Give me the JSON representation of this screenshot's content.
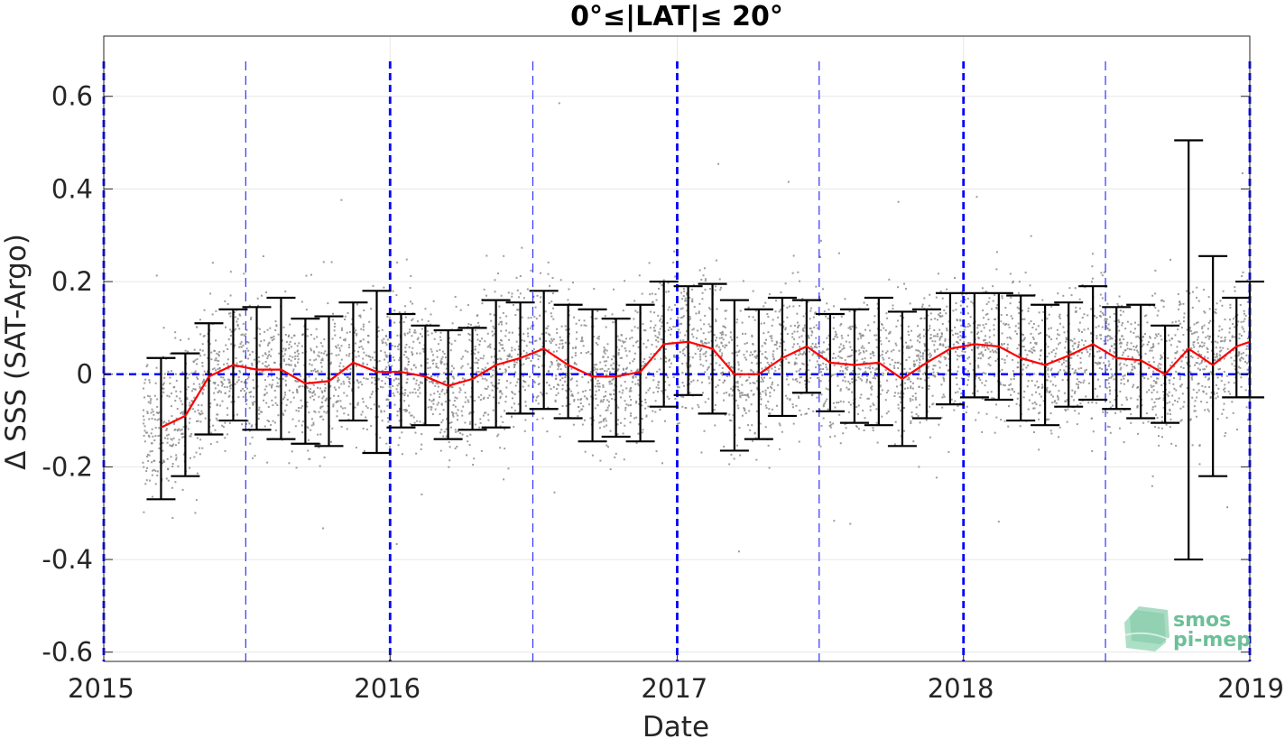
{
  "chart_data": {
    "type": "scatter",
    "title": "0°≤|LAT|≤ 20°",
    "xlabel": "Date",
    "ylabel": "Δ SSS (SAT-Argo)",
    "xlim": [
      "2015-01-01",
      "2019-01-01"
    ],
    "ylim": [
      -0.62,
      0.73
    ],
    "x_ticks": [
      "2015",
      "2016",
      "2017",
      "2018",
      "2019"
    ],
    "y_ticks": [
      "-0.6",
      "-0.4",
      "-0.2",
      "0",
      "0.2",
      "0.4",
      "0.6"
    ],
    "y_tick_values": [
      -0.6,
      -0.4,
      -0.2,
      0,
      0.2,
      0.4,
      0.6
    ],
    "grid": true,
    "reference_line_y": 0,
    "year_lines": [
      "2015-01-01",
      "2016-01-01",
      "2017-01-01",
      "2018-01-01",
      "2019-01-01"
    ],
    "half_year_lines": [
      "2015-07-01",
      "2016-07-01",
      "2017-07-01",
      "2018-07-01"
    ],
    "colors": {
      "mean_line": "#ff0000",
      "error_bars": "#000000",
      "scatter": "#8c8c8c",
      "reference_lines": "#0000ff",
      "grid": "#e6e6e6"
    },
    "series": [
      {
        "kind": "monthly_mean_with_errorbars",
        "dates": [
          "2015-03-15",
          "2015-04-15",
          "2015-05-15",
          "2015-06-15",
          "2015-07-15",
          "2015-08-15",
          "2015-09-15",
          "2015-10-15",
          "2015-11-15",
          "2015-12-15",
          "2016-01-15",
          "2016-02-15",
          "2016-03-15",
          "2016-04-15",
          "2016-05-15",
          "2016-06-15",
          "2016-07-15",
          "2016-08-15",
          "2016-09-15",
          "2016-10-15",
          "2016-11-15",
          "2016-12-15",
          "2017-01-15",
          "2017-02-15",
          "2017-03-15",
          "2017-04-15",
          "2017-05-15",
          "2017-06-15",
          "2017-07-15",
          "2017-08-15",
          "2017-09-15",
          "2017-10-15",
          "2017-11-15",
          "2017-12-15",
          "2018-01-15",
          "2018-02-15",
          "2018-03-15",
          "2018-04-15",
          "2018-05-15",
          "2018-06-15",
          "2018-07-15",
          "2018-08-15",
          "2018-09-15",
          "2018-10-15",
          "2018-11-15",
          "2018-12-15",
          "2019-01-01"
        ],
        "mean": [
          -0.115,
          -0.09,
          -0.005,
          0.02,
          0.01,
          0.01,
          -0.02,
          -0.015,
          0.025,
          0.005,
          0.005,
          -0.005,
          -0.025,
          -0.01,
          0.02,
          0.035,
          0.055,
          0.02,
          -0.005,
          -0.005,
          0.005,
          0.065,
          0.07,
          0.055,
          0.0,
          0.0,
          0.035,
          0.06,
          0.025,
          0.02,
          0.025,
          -0.01,
          0.025,
          0.055,
          0.065,
          0.06,
          0.035,
          0.02,
          0.04,
          0.065,
          0.035,
          0.03,
          0.0,
          0.055,
          0.02,
          0.06,
          0.07
        ],
        "lower": [
          -0.27,
          -0.22,
          -0.13,
          -0.1,
          -0.12,
          -0.14,
          -0.15,
          -0.155,
          -0.1,
          -0.17,
          -0.115,
          -0.11,
          -0.14,
          -0.12,
          -0.115,
          -0.085,
          -0.075,
          -0.095,
          -0.145,
          -0.135,
          -0.145,
          -0.07,
          -0.045,
          -0.085,
          -0.165,
          -0.14,
          -0.09,
          -0.04,
          -0.08,
          -0.105,
          -0.11,
          -0.155,
          -0.095,
          -0.065,
          -0.05,
          -0.055,
          -0.1,
          -0.11,
          -0.07,
          -0.055,
          -0.075,
          -0.095,
          -0.105,
          -0.4,
          -0.22,
          -0.05,
          -0.05
        ],
        "upper": [
          0.035,
          0.045,
          0.11,
          0.14,
          0.145,
          0.165,
          0.12,
          0.125,
          0.155,
          0.18,
          0.13,
          0.105,
          0.095,
          0.1,
          0.16,
          0.155,
          0.18,
          0.15,
          0.14,
          0.12,
          0.15,
          0.2,
          0.19,
          0.195,
          0.16,
          0.14,
          0.165,
          0.16,
          0.13,
          0.14,
          0.165,
          0.135,
          0.14,
          0.175,
          0.175,
          0.175,
          0.17,
          0.15,
          0.155,
          0.19,
          0.145,
          0.15,
          0.105,
          0.505,
          0.255,
          0.165,
          0.2
        ]
      }
    ]
  },
  "logo": {
    "line1": "smos",
    "line2": "pi-mep"
  }
}
